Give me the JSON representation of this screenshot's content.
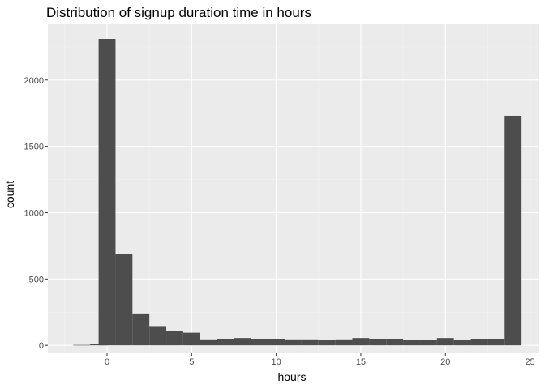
{
  "colors": {
    "panel_background": "#EBEBEB",
    "grid_major": "#FFFFFF",
    "grid_minor": "#F2F2F2",
    "bar_fill": "#4D4D4D",
    "tick_text": "#4D4D4D",
    "title_text": "#000000"
  },
  "chart_data": {
    "type": "bar",
    "subtype": "histogram",
    "title": "Distribution of signup duration time in hours",
    "xlabel": "hours",
    "ylabel": "count",
    "xlim": [
      -3.5,
      25.5
    ],
    "ylim": [
      -60,
      2420
    ],
    "x_ticks": [
      0,
      5,
      10,
      15,
      20,
      25
    ],
    "x_tick_labels": [
      "0",
      "5",
      "10",
      "15",
      "20",
      "25"
    ],
    "y_ticks": [
      0,
      500,
      1000,
      1500,
      2000
    ],
    "y_tick_labels": [
      "0",
      "500",
      "1000",
      "1500",
      "2000"
    ],
    "grid": true,
    "legend": "none",
    "bin_width": 1,
    "bins": [
      {
        "x": -1.5,
        "count": 3
      },
      {
        "x": -0.5,
        "count": 8
      },
      {
        "x": 0,
        "count": 2310
      },
      {
        "x": 1,
        "count": 690
      },
      {
        "x": 2,
        "count": 240
      },
      {
        "x": 3,
        "count": 145
      },
      {
        "x": 4,
        "count": 105
      },
      {
        "x": 5,
        "count": 95
      },
      {
        "x": 6,
        "count": 45
      },
      {
        "x": 7,
        "count": 50
      },
      {
        "x": 8,
        "count": 55
      },
      {
        "x": 9,
        "count": 50
      },
      {
        "x": 10,
        "count": 50
      },
      {
        "x": 11,
        "count": 45
      },
      {
        "x": 12,
        "count": 45
      },
      {
        "x": 13,
        "count": 40
      },
      {
        "x": 14,
        "count": 45
      },
      {
        "x": 15,
        "count": 55
      },
      {
        "x": 16,
        "count": 50
      },
      {
        "x": 17,
        "count": 50
      },
      {
        "x": 18,
        "count": 40
      },
      {
        "x": 19,
        "count": 40
      },
      {
        "x": 20,
        "count": 55
      },
      {
        "x": 21,
        "count": 40
      },
      {
        "x": 22,
        "count": 50
      },
      {
        "x": 23,
        "count": 50
      },
      {
        "x": 24,
        "count": 1730
      }
    ]
  }
}
